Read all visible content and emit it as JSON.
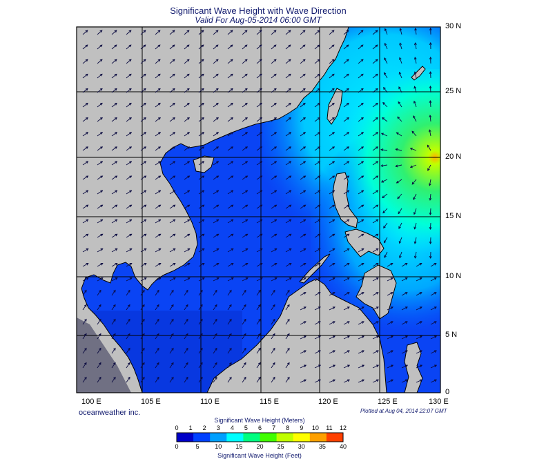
{
  "header": {
    "title": "Significant Wave Height with Wave Direction",
    "subtitle": "Valid For Aug-05-2014 06:00 GMT"
  },
  "map": {
    "region": "South China Sea",
    "lat_labels": [
      "30 N",
      "25 N",
      "20 N",
      "15 N",
      "10 N",
      "5 N",
      "0"
    ],
    "lon_labels": [
      "100 E",
      "105 E",
      "110 E",
      "115 E",
      "120 E",
      "125 E",
      "130 E"
    ],
    "land_color": "#c0c0c0",
    "max_wave_location": "20 N 130 E",
    "arrows_indicate": "wave direction"
  },
  "footer": {
    "credit": "oceanweather inc.",
    "plotted": "Plotted at Aug 04, 2014 22:07 GMT"
  },
  "colorbar": {
    "title_meters": "Significant Wave Height (Meters)",
    "title_feet": "Significant Wave Height (Feet)",
    "meters_ticks": [
      "0",
      "1",
      "2",
      "3",
      "4",
      "5",
      "6",
      "7",
      "8",
      "9",
      "10",
      "11",
      "12"
    ],
    "feet_ticks": [
      "0",
      "5",
      "10",
      "15",
      "20",
      "25",
      "30",
      "35",
      "40"
    ],
    "colors": [
      "#0000c8",
      "#0040ff",
      "#00a0ff",
      "#00ffff",
      "#00ff80",
      "#40ff00",
      "#c0ff00",
      "#ffff00",
      "#ffa000",
      "#ff4000"
    ]
  }
}
